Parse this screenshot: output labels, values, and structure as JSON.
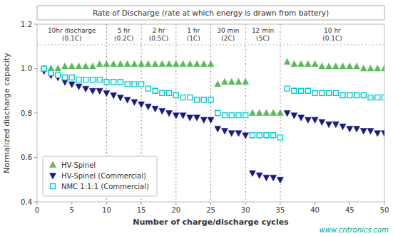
{
  "chart_data": {
    "type": "scatter",
    "title": "Rate of Discharge (rate at which energy is drawn from battery)",
    "x_label": "Number of charge/discharge cycles",
    "y_label": "Normalized discharge capacity",
    "xlim": [
      0,
      50
    ],
    "ylim": [
      0.4,
      1.2
    ],
    "xticks": [
      0,
      5,
      10,
      15,
      20,
      25,
      30,
      35,
      40,
      45,
      50
    ],
    "yticks": [
      0.4,
      0.6,
      0.8,
      {
        "value": 1.0,
        "label": "1.0"
      },
      1.2
    ],
    "grid": false,
    "legend": "lower left",
    "vlines": [
      10,
      15,
      20,
      25,
      30,
      35
    ],
    "annotations": [
      {
        "text": "10hr discharge",
        "subtext": "(0.1C)"
      },
      {
        "text": "5 hr",
        "subtext": "(0.2C)"
      },
      {
        "text": "2 hr",
        "subtext": "(0.5C)"
      },
      {
        "text": "1 hr",
        "subtext": "(1C)"
      },
      {
        "text": "30 min",
        "subtext": "(2C)"
      },
      {
        "text": "12 min",
        "subtext": "(5C)"
      },
      {
        "text": "10 hr",
        "subtext": "(0.1C)"
      }
    ],
    "watermark": "www.cntronics.com",
    "x": [
      1,
      2,
      3,
      4,
      5,
      6,
      7,
      8,
      9,
      10,
      11,
      12,
      13,
      14,
      15,
      16,
      17,
      18,
      19,
      20,
      21,
      22,
      23,
      24,
      25,
      26,
      27,
      28,
      29,
      30,
      31,
      32,
      33,
      34,
      35,
      36,
      37,
      38,
      39,
      40,
      41,
      42,
      43,
      44,
      45,
      46,
      47,
      48,
      49,
      50
    ],
    "series": [
      {
        "name": "HV-Spinel",
        "color": "#5cb85c",
        "marker": "triangle-up",
        "values": [
          1.0,
          1.0,
          1.0,
          1.01,
          1.01,
          1.01,
          1.01,
          1.01,
          1.02,
          1.02,
          1.02,
          1.02,
          1.02,
          1.02,
          1.02,
          1.02,
          1.02,
          1.02,
          1.02,
          1.02,
          1.02,
          1.02,
          1.02,
          1.02,
          1.02,
          0.93,
          0.94,
          0.94,
          0.94,
          0.94,
          0.8,
          0.8,
          0.8,
          0.8,
          0.8,
          1.03,
          1.02,
          1.02,
          1.02,
          1.02,
          1.01,
          1.01,
          1.01,
          1.01,
          1.01,
          1.01,
          1.0,
          1.0,
          1.0,
          1.0
        ]
      },
      {
        "name": "HV-Spinel (Commercial)",
        "color": "#1a1a7e",
        "marker": "triangle-down",
        "values": [
          0.99,
          0.97,
          0.96,
          0.94,
          0.93,
          0.92,
          0.91,
          0.9,
          0.9,
          0.89,
          0.88,
          0.87,
          0.86,
          0.85,
          0.84,
          0.83,
          0.82,
          0.81,
          0.8,
          0.79,
          0.79,
          0.78,
          0.78,
          0.77,
          0.77,
          0.73,
          0.72,
          0.71,
          0.71,
          0.7,
          0.53,
          0.52,
          0.51,
          0.51,
          0.5,
          0.8,
          0.79,
          0.78,
          0.77,
          0.77,
          0.76,
          0.75,
          0.75,
          0.74,
          0.73,
          0.73,
          0.72,
          0.72,
          0.71,
          0.71
        ]
      },
      {
        "name": "NMC 1:1:1 (Commercial)",
        "color": "#00cccc",
        "marker": "square-open",
        "values": [
          1.0,
          0.98,
          0.97,
          0.96,
          0.96,
          0.95,
          0.95,
          0.95,
          0.95,
          0.94,
          0.94,
          0.94,
          0.93,
          0.93,
          0.93,
          0.91,
          0.9,
          0.89,
          0.89,
          0.88,
          0.87,
          0.87,
          0.86,
          0.86,
          0.86,
          0.8,
          0.79,
          0.79,
          0.79,
          0.79,
          0.7,
          0.7,
          0.7,
          0.7,
          0.69,
          0.91,
          0.9,
          0.9,
          0.9,
          0.89,
          0.89,
          0.89,
          0.89,
          0.88,
          0.88,
          0.88,
          0.88,
          0.87,
          0.87,
          0.87
        ]
      }
    ]
  }
}
